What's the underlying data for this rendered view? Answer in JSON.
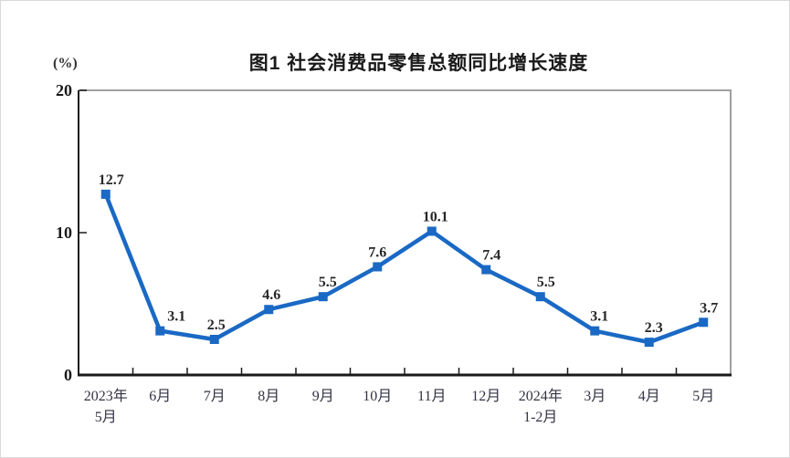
{
  "colors": {
    "line": "#1a69c4",
    "marker": "#1a69c4",
    "axis": "#1a1a1a",
    "frame": "#a0a0a0",
    "page_border": "#d9d9d9",
    "title_text": "#1a1a1a",
    "tick_text": "#333344",
    "value_text": "#262626"
  },
  "chart_data": {
    "type": "line",
    "title": "图1  社会消费品零售总额同比增长速度",
    "ylabel": "(%)",
    "xlabel": "",
    "ylim": [
      0,
      20
    ],
    "yticks": [
      0,
      10,
      20
    ],
    "grid": false,
    "legend": null,
    "marker": "square",
    "categories": [
      "2023年\n5月",
      "6月",
      "7月",
      "8月",
      "9月",
      "10月",
      "11月",
      "12月",
      "2024年\n1-2月",
      "3月",
      "4月",
      "5月"
    ],
    "values": [
      12.7,
      3.1,
      2.5,
      4.6,
      5.5,
      7.6,
      10.1,
      7.4,
      5.5,
      3.1,
      2.3,
      3.7
    ],
    "value_labels": [
      "12.7",
      "3.1",
      "2.5",
      "4.6",
      "5.5",
      "7.6",
      "10.1",
      "7.4",
      "5.5",
      "3.1",
      "2.3",
      "3.7"
    ],
    "label_dx": [
      6,
      18,
      2,
      3,
      5,
      0,
      4,
      6,
      6,
      5,
      5,
      6
    ]
  }
}
